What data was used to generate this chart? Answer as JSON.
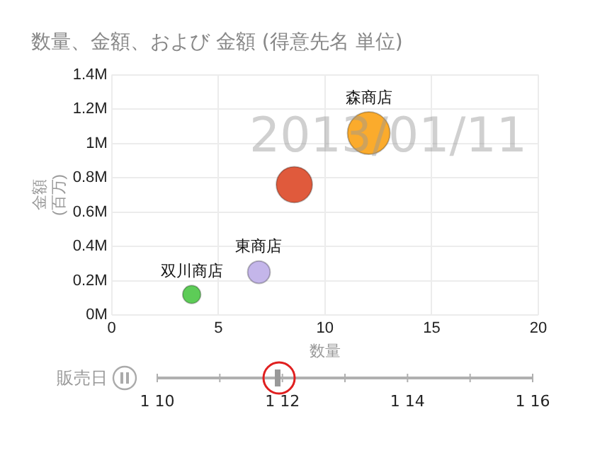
{
  "chart_data": {
    "type": "bubble",
    "title": "数量、金額、および 金額 (得意先名 単位)",
    "xlabel": "数量",
    "ylabel": "金額 (百万)",
    "xlim": [
      0,
      20
    ],
    "xticks": [
      0,
      5,
      10,
      15,
      20
    ],
    "ylim": [
      0,
      1400000
    ],
    "yticks": [
      {
        "value": 0,
        "label": "0M"
      },
      {
        "value": 200000,
        "label": "0.2M"
      },
      {
        "value": 400000,
        "label": "0.4M"
      },
      {
        "value": 600000,
        "label": "0.6M"
      },
      {
        "value": 800000,
        "label": "0.8M"
      },
      {
        "value": 1000000,
        "label": "1M"
      },
      {
        "value": 1200000,
        "label": "1.2M"
      },
      {
        "value": 1400000,
        "label": "1.4M"
      }
    ],
    "grid": true,
    "legend": false,
    "series": [
      {
        "name": "森商店",
        "color": "#fbab2c",
        "x": [
          12.05
        ],
        "values": [
          1060000
        ],
        "sizes": [
          1
        ]
      },
      {
        "color": "#e05a3c",
        "x": [
          8.56
        ],
        "values": [
          760000
        ],
        "sizes": [
          0.72
        ]
      },
      {
        "name": "東商店",
        "color": "#c4b6ea",
        "x": [
          6.9
        ],
        "values": [
          250000
        ],
        "sizes": [
          0.28
        ]
      },
      {
        "name": "双川商店",
        "color": "#5dcc57",
        "x": [
          3.75
        ],
        "values": [
          120000
        ],
        "sizes": [
          0.18
        ]
      }
    ],
    "annotations": [
      "2013/01/11",
      "販売日",
      "1 10",
      "1 12",
      "1 14",
      "1 16"
    ]
  }
}
